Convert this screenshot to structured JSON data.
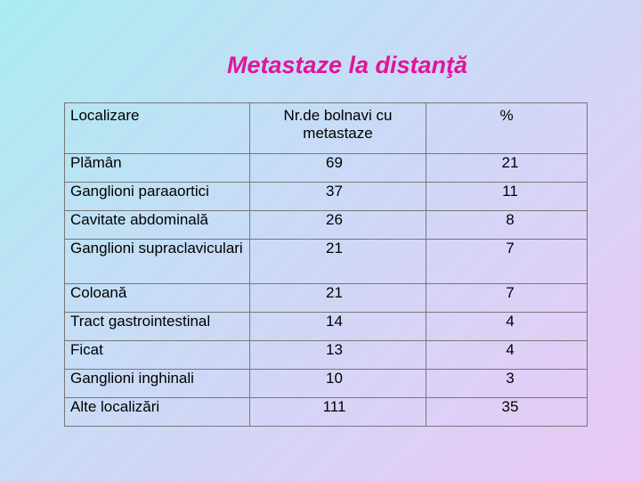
{
  "title": "Metastaze la distanţă",
  "table": {
    "headers": [
      "Localizare",
      "Nr.de bolnavi cu metastaze",
      "%"
    ],
    "rows": [
      {
        "localizare": "Plămân",
        "nr": "69",
        "pct": "21"
      },
      {
        "localizare": "Ganglioni paraaortici",
        "nr": "37",
        "pct": "11"
      },
      {
        "localizare": "Cavitate abdominală",
        "nr": "26",
        "pct": "8"
      },
      {
        "localizare": "Ganglioni supraclaviculari",
        "nr": "21",
        "pct": "7"
      },
      {
        "localizare": "Coloană",
        "nr": "21",
        "pct": "7"
      },
      {
        "localizare": "Tract gastrointestinal",
        "nr": "14",
        "pct": "4"
      },
      {
        "localizare": "Ficat",
        "nr": "13",
        "pct": "4"
      },
      {
        "localizare": "Ganglioni inghinali",
        "nr": "10",
        "pct": "3"
      },
      {
        "localizare": "Alte localizări",
        "nr": "111",
        "pct": "35"
      }
    ]
  },
  "colors": {
    "title": "#e0159a",
    "border": "#777777"
  }
}
